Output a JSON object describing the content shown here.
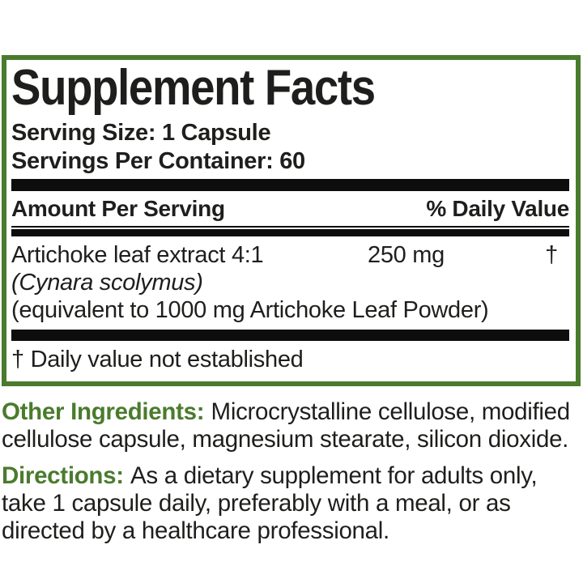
{
  "colors": {
    "green": "#4a7b2d",
    "ink": "#1e1e1c",
    "bg": "#ffffff"
  },
  "panel": {
    "title": "Supplement Facts",
    "serving_size": "Serving Size: 1 Capsule",
    "servings_per_container": "Servings Per Container: 60",
    "header": {
      "amount_label": "Amount Per Serving",
      "daily_value_label": "% Daily Value"
    },
    "rows": [
      {
        "name": "Artichoke leaf extract 4:1",
        "latin_name": "(Cynara scolymus)",
        "equivalent": "(equivalent to 1000 mg Artichoke Leaf Powder)",
        "amount": "250 mg",
        "daily_value": "†"
      }
    ],
    "footnote": "† Daily value not established"
  },
  "other_ingredients": {
    "label": "Other Ingredients:",
    "text": "Microcrystalline cellulose, modified cellulose capsule, magnesium stearate, silicon dioxide."
  },
  "directions": {
    "label": "Directions:",
    "text": "As a dietary supplement for adults only, take 1 capsule daily, preferably with a meal, or as directed by a healthcare professional."
  }
}
